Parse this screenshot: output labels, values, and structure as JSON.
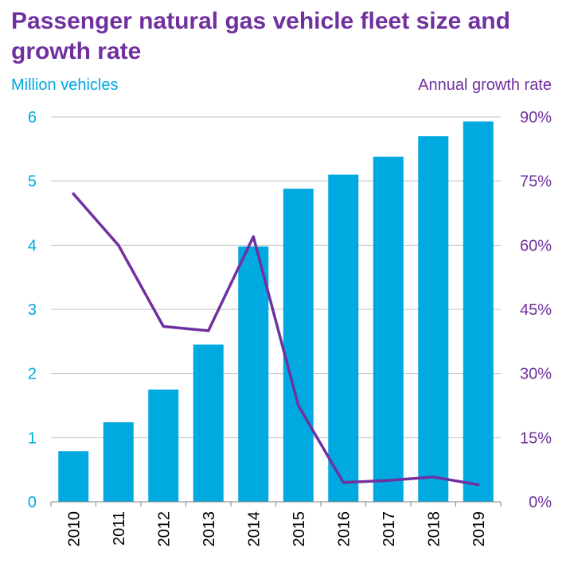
{
  "colors": {
    "title": "#7030A0",
    "bar": "#00A9E0",
    "line": "#7030A0",
    "left_axis": "#00A9E0",
    "right_axis": "#7030A0",
    "grid": "#BFBFBF",
    "axis_line": "#808080",
    "x_label": "#000000"
  },
  "chart_data": {
    "type": "bar",
    "title": "Passenger natural gas vehicle fleet size and growth rate",
    "categories": [
      "2010",
      "2011",
      "2012",
      "2013",
      "2014",
      "2015",
      "2016",
      "2017",
      "2018",
      "2019"
    ],
    "ylabel": "Million vehicles",
    "y2label": "Annual growth rate",
    "ylim": [
      0,
      6
    ],
    "y2lim": [
      0,
      90
    ],
    "yticks": [
      "0",
      "1",
      "2",
      "3",
      "4",
      "5",
      "6"
    ],
    "y2ticks": [
      "0%",
      "15%",
      "30%",
      "45%",
      "60%",
      "75%",
      "90%"
    ],
    "grid": true,
    "series": [
      {
        "type": "bar",
        "axis": "left",
        "values": [
          0.79,
          1.24,
          1.75,
          2.45,
          3.98,
          4.88,
          5.1,
          5.38,
          5.7,
          5.93
        ]
      },
      {
        "type": "line",
        "axis": "right",
        "values": [
          72,
          60,
          41,
          40,
          62,
          22.5,
          4.5,
          5,
          5.8,
          4
        ]
      }
    ]
  }
}
